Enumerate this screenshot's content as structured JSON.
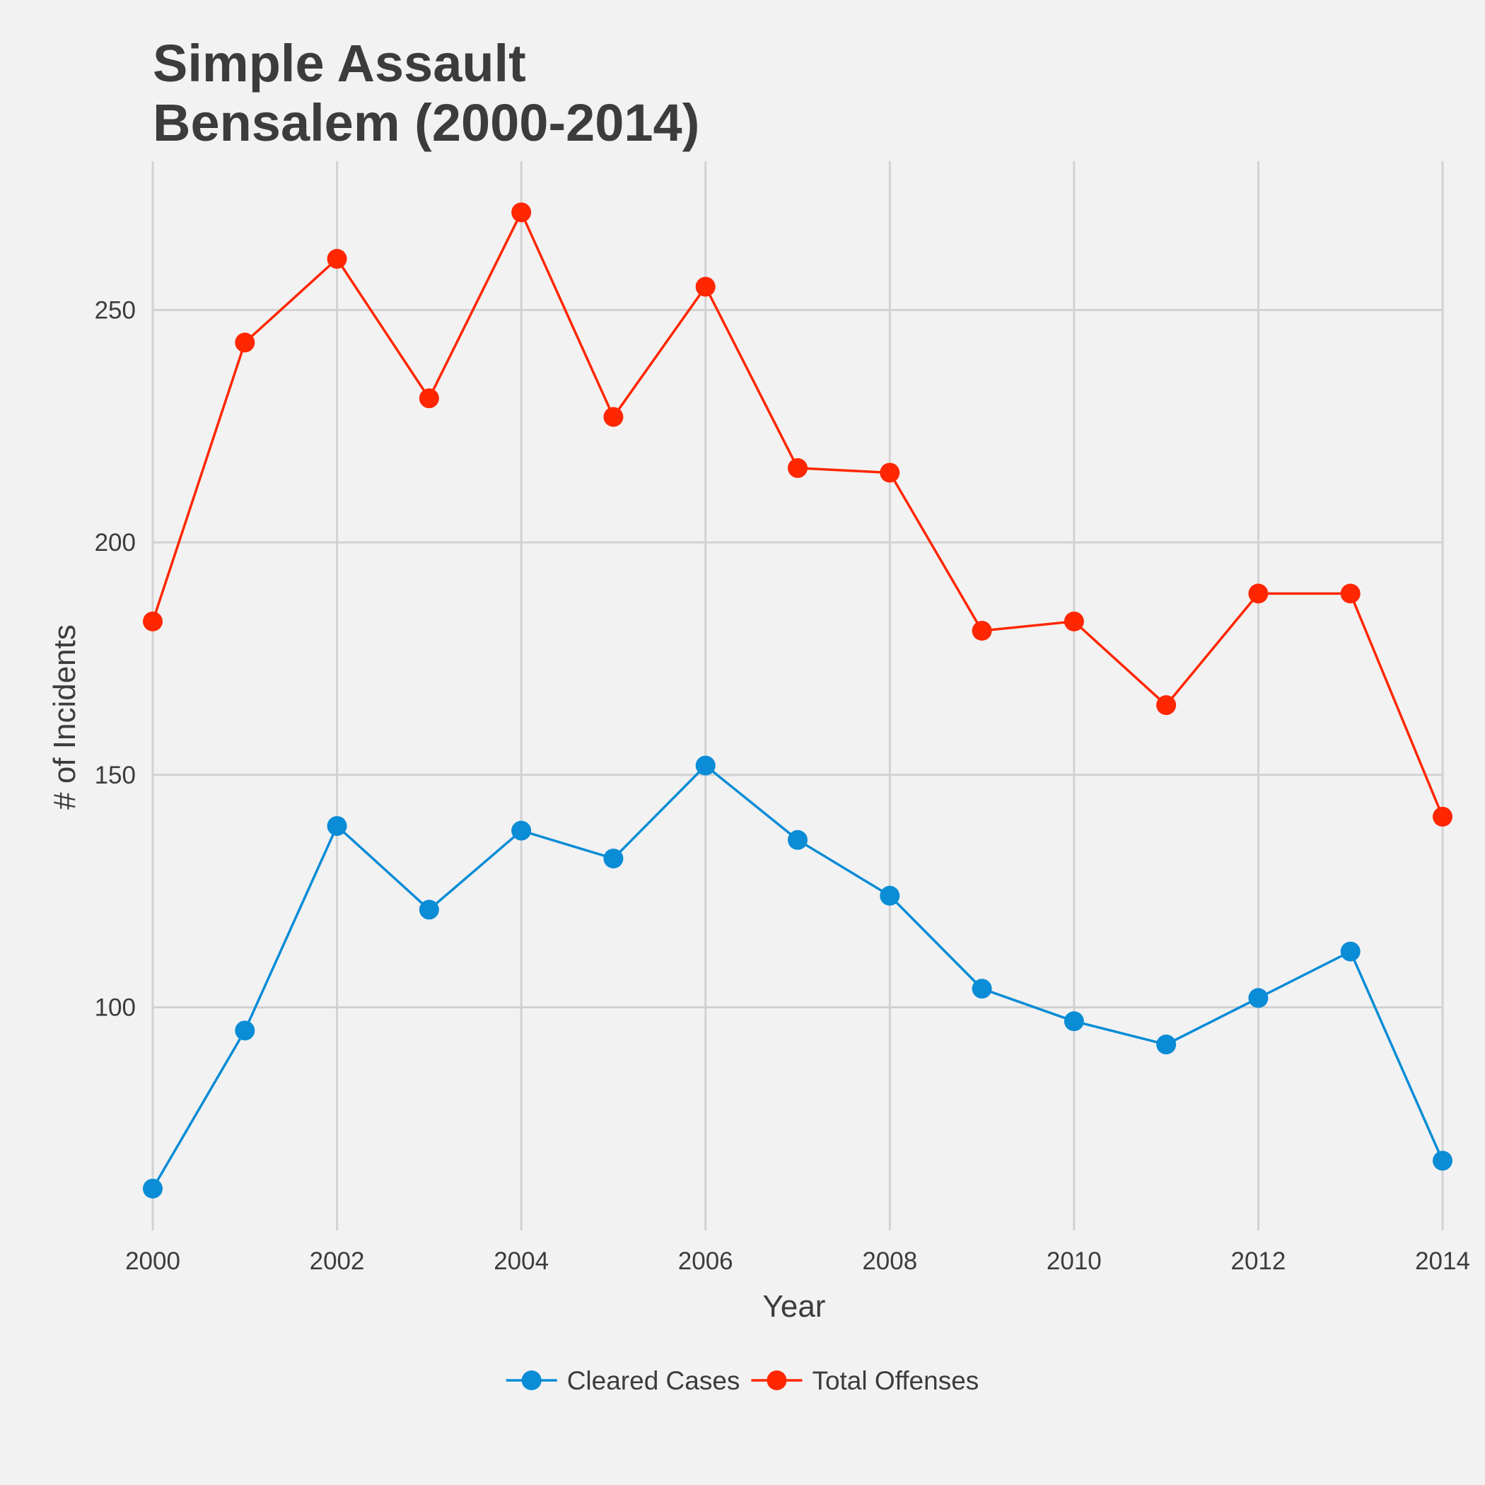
{
  "chart_data": {
    "type": "line",
    "title_lines": [
      "Simple Assault",
      "Bensalem (2000-2014)"
    ],
    "xlabel": "Year",
    "ylabel": "# of Incidents",
    "x": [
      2000,
      2001,
      2002,
      2003,
      2004,
      2005,
      2006,
      2007,
      2008,
      2009,
      2010,
      2011,
      2012,
      2013,
      2014
    ],
    "x_ticks": [
      2000,
      2002,
      2004,
      2006,
      2008,
      2010,
      2012,
      2014
    ],
    "y_ticks": [
      100,
      150,
      200,
      250
    ],
    "xlim": [
      2000,
      2014
    ],
    "ylim": [
      52,
      282
    ],
    "grid": true,
    "legend_position": "bottom",
    "series": [
      {
        "name": "Cleared Cases",
        "color": "#0a8cd6",
        "values": [
          61,
          95,
          139,
          121,
          138,
          132,
          152,
          136,
          124,
          104,
          97,
          92,
          102,
          112,
          67
        ]
      },
      {
        "name": "Total Offenses",
        "color": "#ff2600",
        "values": [
          183,
          243,
          261,
          231,
          271,
          227,
          255,
          216,
          215,
          181,
          183,
          165,
          189,
          189,
          141
        ]
      }
    ]
  }
}
